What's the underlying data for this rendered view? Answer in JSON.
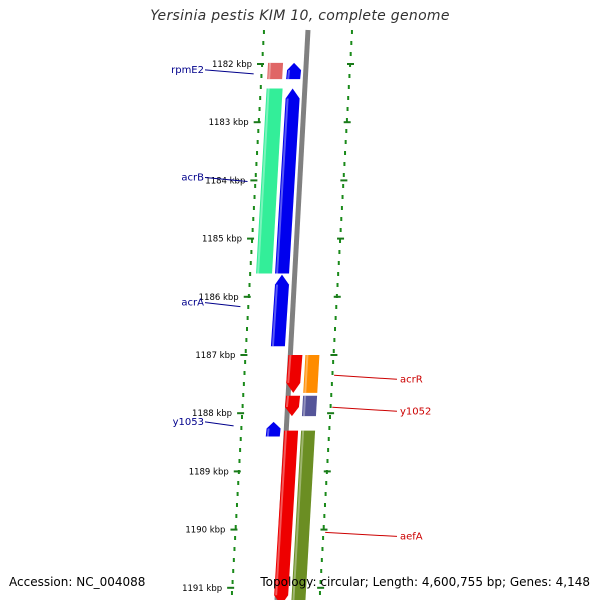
{
  "title": "Yersinia pestis KIM 10, complete genome",
  "footer": {
    "accession": "Accession: NC_004088",
    "summary": "Topology: circular; Length: 4,600,755 bp; Genes: 4,148"
  },
  "ticks": [
    {
      "kbp": 1182,
      "label": "1182 kbp"
    },
    {
      "kbp": 1183,
      "label": "1183 kbp"
    },
    {
      "kbp": 1184,
      "label": "1184 kbp"
    },
    {
      "kbp": 1185,
      "label": "1185 kbp"
    },
    {
      "kbp": 1186,
      "label": "1186 kbp"
    },
    {
      "kbp": 1187,
      "label": "1187 kbp"
    },
    {
      "kbp": 1188,
      "label": "1188 kbp"
    },
    {
      "kbp": 1189,
      "label": "1189 kbp"
    },
    {
      "kbp": 1190,
      "label": "1190 kbp"
    },
    {
      "kbp": 1191,
      "label": "1191 kbp"
    }
  ],
  "features": [
    {
      "strand": "minus",
      "start_kbp": 1181.98,
      "end_kbp": 1182.26,
      "kind": "rna",
      "color": "#e06666",
      "name": "rpmE2-rna"
    },
    {
      "strand": "minus",
      "start_kbp": 1181.98,
      "end_kbp": 1182.26,
      "kind": "gene",
      "color": "#0000ee",
      "name": "rpmE2-gene",
      "arrow": "up"
    },
    {
      "strand": "minus",
      "start_kbp": 1182.42,
      "end_kbp": 1185.6,
      "kind": "cds",
      "color": "#33ee99",
      "name": "acrB-cds"
    },
    {
      "strand": "minus",
      "start_kbp": 1182.42,
      "end_kbp": 1185.6,
      "kind": "gene",
      "color": "#0000ee",
      "name": "acrB-gene",
      "arrow": "up"
    },
    {
      "strand": "minus",
      "start_kbp": 1185.62,
      "end_kbp": 1186.85,
      "kind": "gene",
      "color": "#0000ee",
      "name": "acrA-gene",
      "arrow": "up"
    },
    {
      "strand": "minus",
      "start_kbp": 1188.15,
      "end_kbp": 1188.4,
      "kind": "gene",
      "color": "#0000ee",
      "name": "y1053-gene",
      "arrow": "up"
    },
    {
      "strand": "plus",
      "start_kbp": 1187.0,
      "end_kbp": 1187.65,
      "kind": "gene",
      "color": "#ee0000",
      "name": "acrR-gene",
      "arrow": "down"
    },
    {
      "strand": "plus",
      "start_kbp": 1187.0,
      "end_kbp": 1187.65,
      "kind": "cds",
      "color": "#ff8c00",
      "name": "acrR-cds"
    },
    {
      "strand": "plus",
      "start_kbp": 1187.7,
      "end_kbp": 1188.05,
      "kind": "gene",
      "color": "#ee0000",
      "name": "y1052-gene",
      "arrow": "down"
    },
    {
      "strand": "plus",
      "start_kbp": 1187.7,
      "end_kbp": 1188.05,
      "kind": "cds",
      "color": "#555599",
      "name": "y1052-cds"
    },
    {
      "strand": "plus",
      "start_kbp": 1188.3,
      "end_kbp": 1191.3,
      "kind": "gene",
      "color": "#ee0000",
      "name": "aefA-gene",
      "arrow": "down"
    },
    {
      "strand": "plus",
      "start_kbp": 1188.3,
      "end_kbp": 1191.3,
      "kind": "cds",
      "color": "#6b8e23",
      "name": "aefA-cds"
    }
  ],
  "labels": [
    {
      "text": "rpmE2",
      "side": "left",
      "kbp": 1182.1,
      "color": "#00008b"
    },
    {
      "text": "acrB",
      "side": "left",
      "kbp": 1183.95,
      "color": "#00008b"
    },
    {
      "text": "acrA",
      "side": "left",
      "kbp": 1186.1,
      "color": "#00008b"
    },
    {
      "text": "y1053",
      "side": "left",
      "kbp": 1188.15,
      "color": "#00008b"
    },
    {
      "text": "acrR",
      "side": "right",
      "kbp": 1187.4,
      "color": "#cc0000"
    },
    {
      "text": "y1052",
      "side": "right",
      "kbp": 1187.95,
      "color": "#cc0000"
    },
    {
      "text": "aefA",
      "side": "right",
      "kbp": 1190.1,
      "color": "#cc0000"
    }
  ],
  "colors": {
    "backbone": "#808080",
    "ticks": "#1a7a1a",
    "dots": "#1a8a1a",
    "tick_label": "#000000"
  }
}
